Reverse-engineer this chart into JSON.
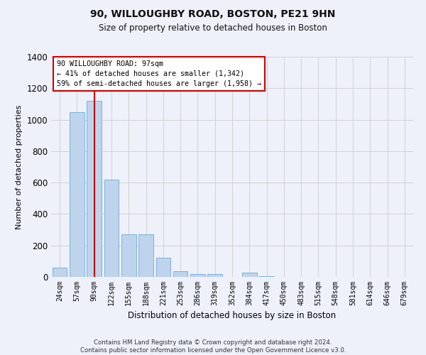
{
  "title1": "90, WILLOUGHBY ROAD, BOSTON, PE21 9HN",
  "title2": "Size of property relative to detached houses in Boston",
  "xlabel": "Distribution of detached houses by size in Boston",
  "ylabel": "Number of detached properties",
  "bar_labels": [
    "24sqm",
    "57sqm",
    "90sqm",
    "122sqm",
    "155sqm",
    "188sqm",
    "221sqm",
    "253sqm",
    "286sqm",
    "319sqm",
    "352sqm",
    "384sqm",
    "417sqm",
    "450sqm",
    "483sqm",
    "515sqm",
    "548sqm",
    "581sqm",
    "614sqm",
    "646sqm",
    "679sqm"
  ],
  "bar_values": [
    60,
    1050,
    1120,
    620,
    270,
    270,
    120,
    35,
    20,
    20,
    0,
    25,
    5,
    0,
    0,
    0,
    0,
    0,
    0,
    0,
    0
  ],
  "bar_color": "#bed4ed",
  "bar_edge_color": "#6aaad4",
  "highlight_color": "#cc0000",
  "vline_x": 2,
  "ylim": [
    0,
    1400
  ],
  "yticks": [
    0,
    200,
    400,
    600,
    800,
    1000,
    1200,
    1400
  ],
  "annotation_lines": [
    "90 WILLOUGHBY ROAD: 97sqm",
    "← 41% of detached houses are smaller (1,342)",
    "59% of semi-detached houses are larger (1,958) →"
  ],
  "footer": "Contains HM Land Registry data © Crown copyright and database right 2024.\nContains public sector information licensed under the Open Government Licence v3.0.",
  "background_color": "#eef1fa",
  "plot_bg_color": "#eef1fa",
  "grid_color": "#cccccc"
}
